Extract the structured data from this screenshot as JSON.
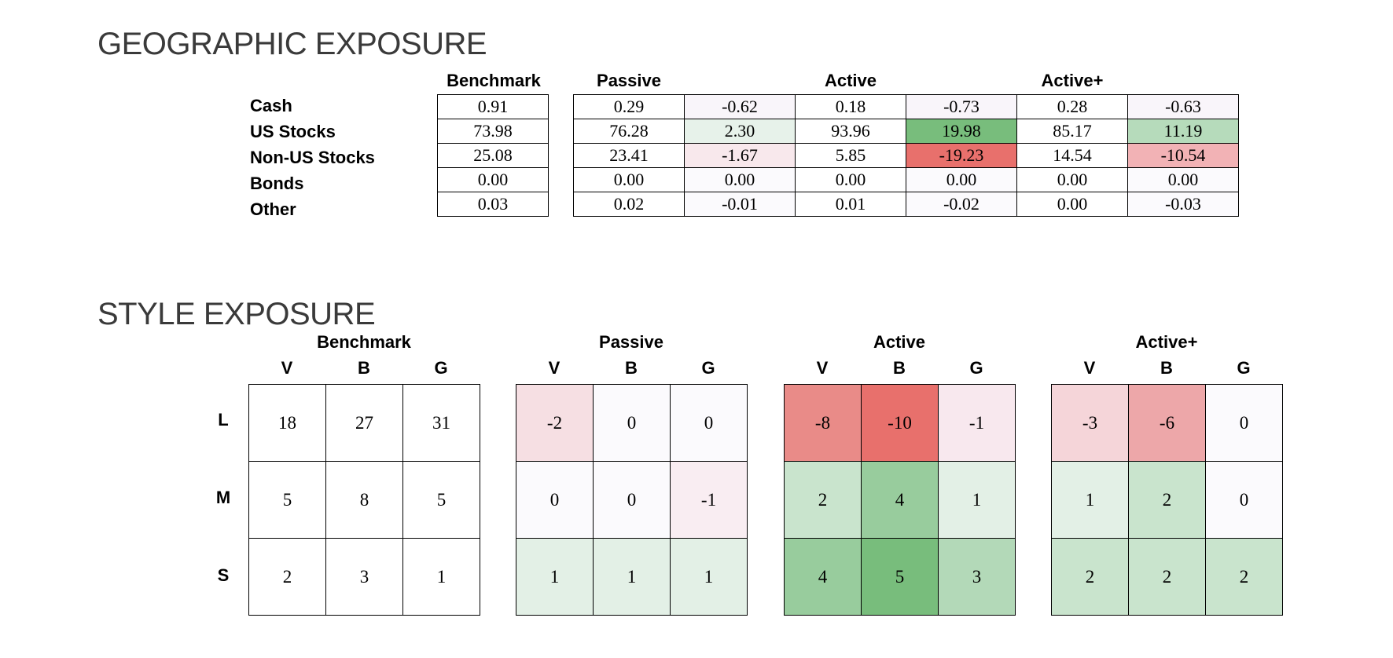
{
  "geographic": {
    "title": "GEOGRAPHIC EXPOSURE",
    "headers": {
      "benchmark": "Benchmark",
      "passive": "Passive",
      "active": "Active",
      "activeplus": "Active+"
    },
    "row_labels": [
      "Cash",
      "US Stocks",
      "Non-US Stocks",
      "Bonds",
      "Other"
    ],
    "benchmark": [
      [
        {
          "v": "0.91",
          "bg": "#ffffff"
        }
      ],
      [
        {
          "v": "73.98",
          "bg": "#ffffff"
        }
      ],
      [
        {
          "v": "25.08",
          "bg": "#ffffff"
        }
      ],
      [
        {
          "v": "0.00",
          "bg": "#ffffff"
        }
      ],
      [
        {
          "v": "0.03",
          "bg": "#ffffff"
        }
      ]
    ],
    "portfolios": [
      [
        {
          "v": "0.29",
          "bg": "#ffffff"
        },
        {
          "v": "-0.62",
          "bg": "#f9f5fa"
        },
        {
          "v": "0.18",
          "bg": "#ffffff"
        },
        {
          "v": "-0.73",
          "bg": "#f9f5fa"
        },
        {
          "v": "0.28",
          "bg": "#ffffff"
        },
        {
          "v": "-0.63",
          "bg": "#f9f5fa"
        }
      ],
      [
        {
          "v": "76.28",
          "bg": "#ffffff"
        },
        {
          "v": "2.30",
          "bg": "#e7f2ea"
        },
        {
          "v": "93.96",
          "bg": "#ffffff"
        },
        {
          "v": "19.98",
          "bg": "#78bd7c"
        },
        {
          "v": "85.17",
          "bg": "#ffffff"
        },
        {
          "v": "11.19",
          "bg": "#b6dbbb"
        }
      ],
      [
        {
          "v": "23.41",
          "bg": "#ffffff"
        },
        {
          "v": "-1.67",
          "bg": "#f8e8ec"
        },
        {
          "v": "5.85",
          "bg": "#ffffff"
        },
        {
          "v": "-19.23",
          "bg": "#e8706c"
        },
        {
          "v": "14.54",
          "bg": "#ffffff"
        },
        {
          "v": "-10.54",
          "bg": "#f2b2b5"
        }
      ],
      [
        {
          "v": "0.00",
          "bg": "#ffffff"
        },
        {
          "v": "0.00",
          "bg": "#fbfafd"
        },
        {
          "v": "0.00",
          "bg": "#ffffff"
        },
        {
          "v": "0.00",
          "bg": "#fbfafd"
        },
        {
          "v": "0.00",
          "bg": "#ffffff"
        },
        {
          "v": "0.00",
          "bg": "#fbfafd"
        }
      ],
      [
        {
          "v": "0.02",
          "bg": "#ffffff"
        },
        {
          "v": "-0.01",
          "bg": "#fbfafd"
        },
        {
          "v": "0.01",
          "bg": "#ffffff"
        },
        {
          "v": "-0.02",
          "bg": "#fbfafd"
        },
        {
          "v": "0.00",
          "bg": "#ffffff"
        },
        {
          "v": "-0.03",
          "bg": "#fbfafd"
        }
      ]
    ]
  },
  "style": {
    "title": "STYLE EXPOSURE",
    "col_labels": [
      "V",
      "B",
      "G"
    ],
    "row_labels": [
      "L",
      "M",
      "S"
    ],
    "grids": [
      {
        "name": "Benchmark",
        "cells": [
          [
            {
              "v": "18",
              "bg": "#ffffff"
            },
            {
              "v": "27",
              "bg": "#ffffff"
            },
            {
              "v": "31",
              "bg": "#ffffff"
            }
          ],
          [
            {
              "v": "5",
              "bg": "#ffffff"
            },
            {
              "v": "8",
              "bg": "#ffffff"
            },
            {
              "v": "5",
              "bg": "#ffffff"
            }
          ],
          [
            {
              "v": "2",
              "bg": "#ffffff"
            },
            {
              "v": "3",
              "bg": "#ffffff"
            },
            {
              "v": "1",
              "bg": "#ffffff"
            }
          ]
        ]
      },
      {
        "name": "Passive",
        "cells": [
          [
            {
              "v": "-2",
              "bg": "#f6dfe3"
            },
            {
              "v": "0",
              "bg": "#fbfafd"
            },
            {
              "v": "0",
              "bg": "#fbfafd"
            }
          ],
          [
            {
              "v": "0",
              "bg": "#fbfafd"
            },
            {
              "v": "0",
              "bg": "#fbfafd"
            },
            {
              "v": "-1",
              "bg": "#f9edf2"
            }
          ],
          [
            {
              "v": "1",
              "bg": "#e3f0e6"
            },
            {
              "v": "1",
              "bg": "#e3f0e6"
            },
            {
              "v": "1",
              "bg": "#e3f0e6"
            }
          ]
        ]
      },
      {
        "name": "Active",
        "cells": [
          [
            {
              "v": "-8",
              "bg": "#e98b88"
            },
            {
              "v": "-10",
              "bg": "#e8706c"
            },
            {
              "v": "-1",
              "bg": "#f8e8ee"
            }
          ],
          [
            {
              "v": "2",
              "bg": "#c9e4cd"
            },
            {
              "v": "4",
              "bg": "#98cc9d"
            },
            {
              "v": "1",
              "bg": "#e3f0e6"
            }
          ],
          [
            {
              "v": "4",
              "bg": "#98cc9d"
            },
            {
              "v": "5",
              "bg": "#78bd7c"
            },
            {
              "v": "3",
              "bg": "#b3d9b8"
            }
          ]
        ]
      },
      {
        "name": "Active+",
        "cells": [
          [
            {
              "v": "-3",
              "bg": "#f5d5d9"
            },
            {
              "v": "-6",
              "bg": "#eda7a9"
            },
            {
              "v": "0",
              "bg": "#fbfafd"
            }
          ],
          [
            {
              "v": "1",
              "bg": "#e3f0e6"
            },
            {
              "v": "2",
              "bg": "#c9e4cd"
            },
            {
              "v": "0",
              "bg": "#fbfafd"
            }
          ],
          [
            {
              "v": "2",
              "bg": "#c9e4cd"
            },
            {
              "v": "2",
              "bg": "#c9e4cd"
            },
            {
              "v": "2",
              "bg": "#c9e4cd"
            }
          ]
        ]
      }
    ]
  }
}
